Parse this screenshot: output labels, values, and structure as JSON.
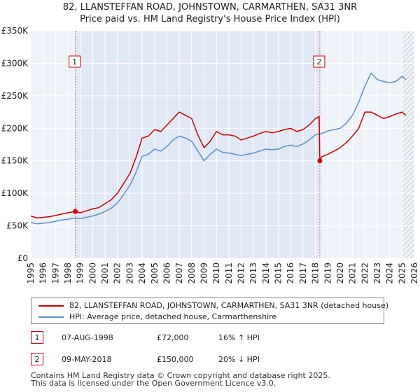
{
  "chart_data": {
    "type": "line",
    "title": "82, LLANSTEFFAN ROAD, JOHNSTOWN, CARMARTHEN, SA31 3NR",
    "subtitle": "Price paid vs. HM Land Registry's House Price Index (HPI)",
    "xlim": [
      1995,
      2026
    ],
    "ylim": [
      0,
      350000
    ],
    "yticks": [
      0,
      50000,
      100000,
      150000,
      200000,
      250000,
      300000,
      350000
    ],
    "ytick_labels": [
      "£0",
      "£50K",
      "£100K",
      "£150K",
      "£200K",
      "£250K",
      "£300K",
      "£350K"
    ],
    "xticks": [
      1995,
      1996,
      1997,
      1998,
      1999,
      2000,
      2001,
      2002,
      2003,
      2004,
      2005,
      2006,
      2007,
      2008,
      2009,
      2010,
      2011,
      2012,
      2013,
      2014,
      2015,
      2016,
      2017,
      2018,
      2019,
      2020,
      2021,
      2022,
      2023,
      2024,
      2025,
      2026
    ],
    "xtick_labels": [
      "1995",
      "1996",
      "1997",
      "1998",
      "1999",
      "2000",
      "2001",
      "2002",
      "2003",
      "2004",
      "2005",
      "2006",
      "2007",
      "2008",
      "2009",
      "2010",
      "2011",
      "2012",
      "2013",
      "2014",
      "2015",
      "2016",
      "2017",
      "2018",
      "2019",
      "2020",
      "2021",
      "2022",
      "2023",
      "2024",
      "2025",
      "2026"
    ],
    "grid": true,
    "series": [
      {
        "name": "82, LLANSTEFFAN ROAD, JOHNSTOWN, CARMARTHEN, SA31 3NR (detached house)",
        "color": "#cc0000",
        "x": [
          1995.0,
          1995.5,
          1996.0,
          1996.5,
          1997.0,
          1997.5,
          1998.0,
          1998.6,
          1999.0,
          1999.5,
          2000.0,
          2000.5,
          2001.0,
          2001.5,
          2002.0,
          2002.5,
          2003.0,
          2003.5,
          2004.0,
          2004.5,
          2005.0,
          2005.5,
          2006.0,
          2006.5,
          2007.0,
          2007.5,
          2008.0,
          2008.5,
          2009.0,
          2009.5,
          2010.0,
          2010.5,
          2011.0,
          2011.5,
          2012.0,
          2012.5,
          2013.0,
          2013.5,
          2014.0,
          2014.5,
          2015.0,
          2015.5,
          2016.0,
          2016.5,
          2017.0,
          2017.5,
          2018.0,
          2018.3,
          2018.36,
          2018.5,
          2019.0,
          2019.5,
          2020.0,
          2020.5,
          2021.0,
          2021.5,
          2022.0,
          2022.5,
          2023.0,
          2023.5,
          2024.0,
          2024.5,
          2025.0,
          2025.3
        ],
        "values": [
          65000,
          62000,
          63000,
          64000,
          66000,
          68000,
          70000,
          72000,
          70000,
          73000,
          76000,
          78000,
          84000,
          90000,
          100000,
          115000,
          130000,
          155000,
          185000,
          188000,
          198000,
          195000,
          205000,
          215000,
          225000,
          220000,
          215000,
          190000,
          170000,
          180000,
          195000,
          190000,
          190000,
          188000,
          182000,
          185000,
          188000,
          192000,
          195000,
          193000,
          195000,
          198000,
          200000,
          195000,
          198000,
          205000,
          215000,
          218000,
          150000,
          156000,
          160000,
          165000,
          170000,
          178000,
          188000,
          200000,
          225000,
          225000,
          220000,
          215000,
          218000,
          222000,
          225000,
          220000
        ]
      },
      {
        "name": "HPI: Average price, detached house, Carmarthenshire",
        "color": "#5b8fc9",
        "x": [
          1995.0,
          1995.5,
          1996.0,
          1996.5,
          1997.0,
          1997.5,
          1998.0,
          1998.5,
          1999.0,
          1999.5,
          2000.0,
          2000.5,
          2001.0,
          2001.5,
          2002.0,
          2002.5,
          2003.0,
          2003.5,
          2004.0,
          2004.5,
          2005.0,
          2005.5,
          2006.0,
          2006.5,
          2007.0,
          2007.5,
          2008.0,
          2008.5,
          2009.0,
          2009.5,
          2010.0,
          2010.5,
          2011.0,
          2011.5,
          2012.0,
          2012.5,
          2013.0,
          2013.5,
          2014.0,
          2014.5,
          2015.0,
          2015.5,
          2016.0,
          2016.5,
          2017.0,
          2017.5,
          2018.0,
          2018.5,
          2019.0,
          2019.5,
          2020.0,
          2020.5,
          2021.0,
          2021.5,
          2022.0,
          2022.5,
          2023.0,
          2023.5,
          2024.0,
          2024.5,
          2025.0,
          2025.3
        ],
        "values": [
          55000,
          53000,
          54000,
          55000,
          57000,
          59000,
          60000,
          62000,
          61000,
          63000,
          65000,
          68000,
          72000,
          77000,
          85000,
          98000,
          112000,
          132000,
          157000,
          160000,
          168000,
          165000,
          172000,
          182000,
          188000,
          185000,
          180000,
          165000,
          150000,
          160000,
          168000,
          163000,
          162000,
          160000,
          158000,
          160000,
          162000,
          165000,
          168000,
          167000,
          168000,
          172000,
          174000,
          172000,
          176000,
          182000,
          190000,
          192000,
          196000,
          198000,
          200000,
          208000,
          220000,
          240000,
          265000,
          285000,
          275000,
          272000,
          270000,
          272000,
          280000,
          275000
        ]
      }
    ],
    "sales": [
      {
        "label": "1",
        "x": 1998.6,
        "value": 72000,
        "date": "07-AUG-1998",
        "price": "£72,000",
        "hpi": "16% ↑ HPI"
      },
      {
        "label": "2",
        "x": 2018.36,
        "value": 150000,
        "date": "09-MAY-2018",
        "price": "£150,000",
        "hpi": "20% ↓ HPI"
      }
    ],
    "future_from": 2025.0
  },
  "legend": {
    "red_label": "82, LLANSTEFFAN ROAD, JOHNSTOWN, CARMARTHEN, SA31 3NR (detached house)",
    "blue_label": "HPI: Average price, detached house, Carmarthenshire"
  },
  "footer": {
    "line1": "Contains HM Land Registry data © Crown copyright and database right 2025.",
    "line2": "This data is licensed under the Open Government Licence v3.0."
  }
}
